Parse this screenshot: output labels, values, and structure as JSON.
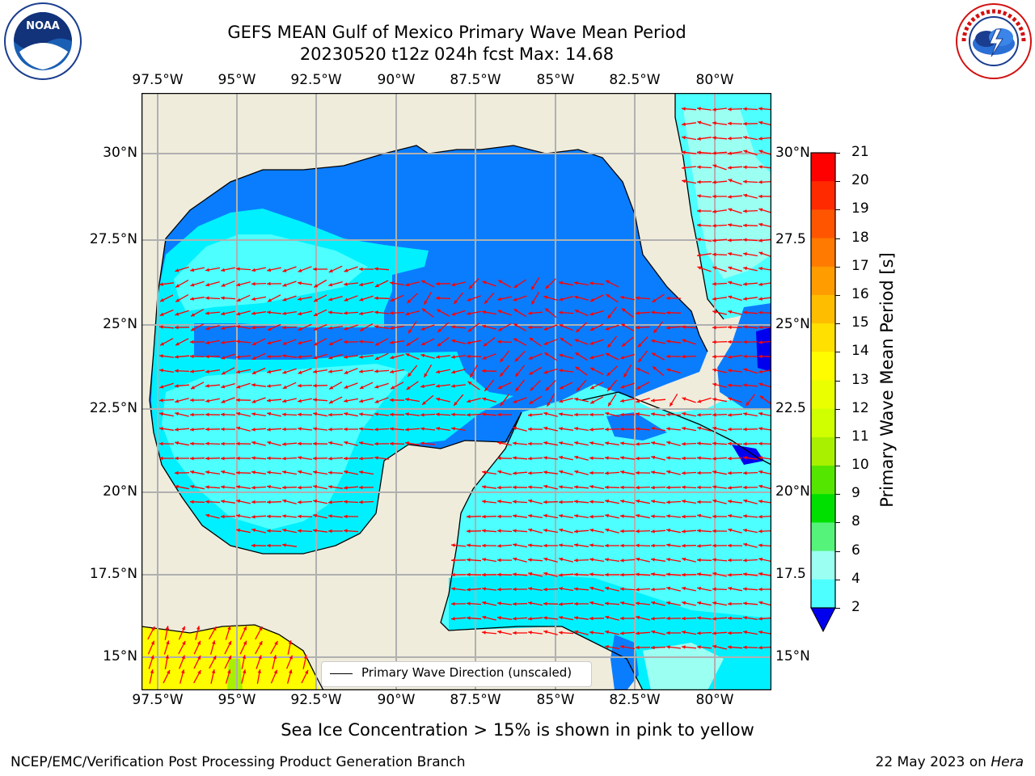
{
  "title": {
    "line1": "GEFS MEAN Gulf of Mexico Primary Wave Mean Period",
    "line2": "20230520 t12z 024h fcst   Max: 14.68"
  },
  "logos": {
    "left": {
      "icon": "noaa-logo",
      "text": "NOAA"
    },
    "right": {
      "icon": "national-weather-service-logo",
      "text": "NATIONAL WEATHER SERVICE"
    }
  },
  "lon_labels": [
    "97.5°W",
    "95°W",
    "92.5°W",
    "90°W",
    "87.5°W",
    "85°W",
    "82.5°W",
    "80°W"
  ],
  "lat_labels_left": [
    "30°N",
    "27.5°N",
    "25°N",
    "22.5°N",
    "20°N",
    "17.5°N",
    "15°N"
  ],
  "lat_labels_right": [
    "30°N",
    "27.5",
    "25°N",
    "22.5",
    "20°N",
    "17.5",
    "15°N"
  ],
  "legend": {
    "label": "Primary Wave Direction (unscaled)"
  },
  "colorbar": {
    "label": "Primary Wave Mean Period [s]",
    "ticks": [
      "21",
      "20",
      "19",
      "18",
      "17",
      "16",
      "15",
      "14",
      "13",
      "12",
      "11",
      "10",
      "9",
      "8",
      "6",
      "4",
      "2"
    ],
    "colors": [
      "#ff0000",
      "#ff2a00",
      "#ff5500",
      "#ff7a00",
      "#ff9c00",
      "#ffbd00",
      "#ffe000",
      "#fffc00",
      "#eaff00",
      "#d0ff00",
      "#a8f000",
      "#55e600",
      "#00e000",
      "#55f37a",
      "#9bfff2",
      "#4dffff",
      "#00f0ff",
      "#0a7dff"
    ],
    "extend_color": "#0000ee"
  },
  "notes": {
    "sea_ice": "Sea Ice Concentration > 15% is shown in pink to yellow",
    "credit": "NCEP/EMC/Verification Post Processing Product Generation Branch",
    "date": "22 May 2023 on ",
    "host": "Hera"
  },
  "colors": {
    "land": "#efecdc",
    "grid": "#b0b0b0",
    "arrows": "#ff0000",
    "period_2_4": "#0a7dff",
    "period_4_6": "#00f0ff",
    "period_6_8": "#4dffff",
    "period_8_9": "#9bfff2",
    "ice_yellow": "#fffc00"
  }
}
